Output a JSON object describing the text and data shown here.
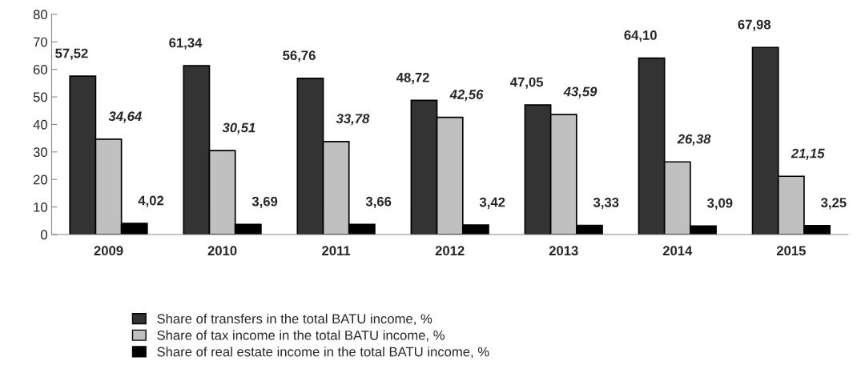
{
  "chart_data": {
    "type": "bar",
    "categories": [
      "2009",
      "2010",
      "2011",
      "2012",
      "2013",
      "2014",
      "2015"
    ],
    "series": [
      {
        "name": "Share of transfers in the total BATU income, %",
        "color": "#333333",
        "values": [
          57.52,
          61.34,
          56.76,
          48.72,
          47.05,
          64.1,
          67.98
        ],
        "value_labels": [
          "57,52",
          "61,34",
          "56,76",
          "48,72",
          "47,05",
          "64,10",
          "67,98"
        ]
      },
      {
        "name": "Share of tax income in the total BATU income, %",
        "color": "#c0c0c0",
        "values": [
          34.64,
          30.51,
          33.78,
          42.56,
          43.59,
          26.38,
          21.15
        ],
        "value_labels": [
          "34,64",
          "30,51",
          "33,78",
          "42,56",
          "43,59",
          "26,38",
          "21,15"
        ]
      },
      {
        "name": "Share of real estate income in the total BATU income, %",
        "color": "#000000",
        "values": [
          4.02,
          3.69,
          3.66,
          3.42,
          3.33,
          3.09,
          3.25
        ],
        "value_labels": [
          "4,02",
          "3,69",
          "3,66",
          "3,42",
          "3,33",
          "3,09",
          "3,25"
        ]
      }
    ],
    "ylim": [
      0,
      80
    ],
    "yticks": [
      0,
      10,
      20,
      30,
      40,
      50,
      60,
      70,
      80
    ],
    "grid": false,
    "legend": "bottom left"
  }
}
